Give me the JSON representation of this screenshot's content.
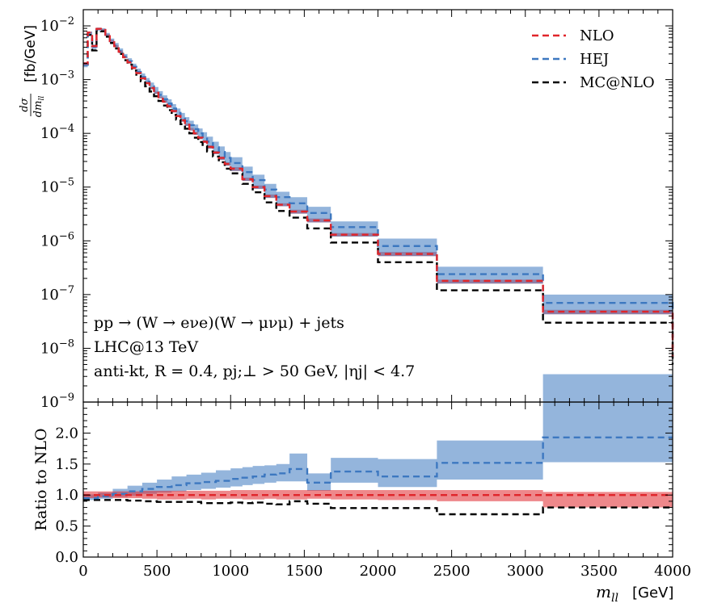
{
  "chart_data": {
    "type": "line",
    "xlabel_math": "m",
    "xlabel_sub": "ll",
    "xlabel_unit": "[GeV]",
    "xlim": [
      0,
      4000
    ],
    "x_ticks": [
      0,
      500,
      1000,
      1500,
      2000,
      2500,
      3000,
      3500,
      4000
    ],
    "x_tick_labels": [
      "0",
      "500",
      "1000",
      "1500",
      "2000",
      "2500",
      "3000",
      "3500",
      "4000"
    ],
    "top": {
      "ylabel_frac_num": "dσ",
      "ylabel_frac_den": "dm",
      "ylabel_frac_den_sub": "ll",
      "ylabel_unit": "[fb/GeV]",
      "yscale": "log",
      "ylim": [
        1e-09,
        0.02
      ],
      "y_tick_exps": [
        -9,
        -8,
        -7,
        -6,
        -5,
        -4,
        -3,
        -2
      ],
      "y_tick_base": "10",
      "edges": [
        0,
        30,
        60,
        90,
        120,
        150,
        180,
        210,
        240,
        270,
        300,
        330,
        360,
        390,
        420,
        450,
        480,
        510,
        540,
        570,
        600,
        630,
        660,
        690,
        720,
        750,
        780,
        810,
        840,
        880,
        920,
        960,
        1000,
        1080,
        1150,
        1230,
        1310,
        1400,
        1520,
        1680,
        2000,
        2400,
        3120,
        4000
      ],
      "series": [
        {
          "name": "NLO",
          "color": "#e0262b",
          "values": [
            0.002,
            0.0075,
            0.0042,
            0.0088,
            0.0084,
            0.0068,
            0.0052,
            0.0042,
            0.0033,
            0.0026,
            0.0021,
            0.00165,
            0.00132,
            0.00106,
            0.00086,
            0.0007,
            0.00057,
            0.00047,
            0.00039,
            0.00032,
            0.00026,
            0.00021,
            0.000175,
            0.000145,
            0.00012,
            0.0001,
            8.3e-05,
            7e-05,
            5.6e-05,
            4.4e-05,
            3.5e-05,
            2.7e-05,
            2.2e-05,
            1.4e-05,
            1e-05,
            6.8e-06,
            4.7e-06,
            3.5e-06,
            2.4e-06,
            1.3e-06,
            5.7e-07,
            1.8e-07,
            4.8e-08,
            7e-09
          ],
          "band_lo": [
            0.0019,
            0.0072,
            0.004,
            0.0084,
            0.008,
            0.0065,
            0.005,
            0.004,
            0.0031,
            0.0025,
            0.002,
            0.00158,
            0.00126,
            0.00101,
            0.00082,
            0.00066,
            0.00054,
            0.00045,
            0.00037,
            0.0003,
            0.000245,
            0.0002,
            0.000165,
            0.000137,
            0.000113,
            9.4e-05,
            7.8e-05,
            6.6e-05,
            5.2e-05,
            4.1e-05,
            3.2e-05,
            2.5e-05,
            2e-05,
            1.3e-05,
            9.3e-06,
            6.3e-06,
            4.4e-06,
            3.2e-06,
            2.2e-06,
            1.2e-06,
            5.2e-07,
            1.6e-07,
            4.3e-08,
            6e-09
          ],
          "band_hi": [
            0.0021,
            0.0078,
            0.0044,
            0.0092,
            0.0088,
            0.0071,
            0.0055,
            0.0044,
            0.0035,
            0.0027,
            0.0022,
            0.00173,
            0.00139,
            0.00111,
            0.0009,
            0.00073,
            0.0006,
            0.00049,
            0.00041,
            0.00034,
            0.000275,
            0.00022,
            0.000185,
            0.000153,
            0.000127,
            0.000106,
            8.8e-05,
            7.4e-05,
            6e-05,
            4.7e-05,
            3.7e-05,
            2.9e-05,
            2.35e-05,
            1.5e-05,
            1.07e-05,
            7.3e-06,
            5e-06,
            3.8e-06,
            2.6e-06,
            1.4e-06,
            6.2e-07,
            1.9e-07,
            5.2e-08,
            8e-09
          ]
        },
        {
          "name": "HEJ",
          "color": "#3d78c0",
          "values": [
            0.0019,
            0.0072,
            0.0041,
            0.0087,
            0.0084,
            0.0069,
            0.0053,
            0.0043,
            0.0034,
            0.0027,
            0.0022,
            0.00173,
            0.00139,
            0.00112,
            0.00092,
            0.00075,
            0.00062,
            0.00052,
            0.00043,
            0.00036,
            0.00029,
            0.00024,
            0.0002,
            0.000168,
            0.000142,
            0.00012,
            0.0001,
            8.5e-05,
            7e-05,
            5.5e-05,
            4.5e-05,
            3.5e-05,
            2.8e-05,
            1.9e-05,
            1.35e-05,
            9e-06,
            6.5e-06,
            5e-06,
            3.3e-06,
            1.8e-06,
            8e-07,
            2.4e-07,
            7e-08,
            1.6e-08
          ],
          "band_lo": [
            0.0017,
            0.0066,
            0.0037,
            0.0082,
            0.0079,
            0.0064,
            0.0049,
            0.004,
            0.0031,
            0.0025,
            0.002,
            0.00158,
            0.00126,
            0.00101,
            0.00082,
            0.00066,
            0.00054,
            0.00045,
            0.00037,
            0.0003,
            0.000245,
            0.0002,
            0.000165,
            0.000137,
            0.000113,
            9.4e-05,
            7.8e-05,
            6.6e-05,
            5.2e-05,
            4.1e-05,
            3.2e-05,
            2.5e-05,
            2e-05,
            1.3e-05,
            9.3e-06,
            6.3e-06,
            4.4e-06,
            3.2e-06,
            2.2e-06,
            1.2e-06,
            5.2e-07,
            1.6e-07,
            4.3e-08,
            1.2e-08
          ],
          "band_hi": [
            0.0021,
            0.0078,
            0.0045,
            0.0093,
            0.009,
            0.0074,
            0.0058,
            0.0048,
            0.0038,
            0.003,
            0.0025,
            0.00198,
            0.0016,
            0.0013,
            0.00107,
            0.00088,
            0.00073,
            0.00061,
            0.00051,
            0.00043,
            0.00035,
            0.00029,
            0.00024,
            0.0002,
            0.000172,
            0.000146,
            0.000123,
            0.000105,
            8.7e-05,
            7e-05,
            5.7e-05,
            4.5e-05,
            3.6e-05,
            2.4e-05,
            1.7e-05,
            1.15e-05,
            8.2e-06,
            6.5e-06,
            4.3e-06,
            2.3e-06,
            1.1e-06,
            3.3e-07,
            1e-07,
            2.3e-08
          ]
        },
        {
          "name": "MC@NLO",
          "color": "#000000",
          "values": [
            0.0019,
            0.0068,
            0.0035,
            0.0083,
            0.0079,
            0.0063,
            0.0048,
            0.0038,
            0.003,
            0.0023,
            0.0019,
            0.00147,
            0.00116,
            0.00093,
            0.00075,
            0.0006,
            0.00049,
            0.0004,
            0.00033,
            0.00027,
            0.00022,
            0.00018,
            0.000148,
            0.000122,
            0.0001,
            8.3e-05,
            6.9e-05,
            5.8e-05,
            4.6e-05,
            3.7e-05,
            2.9e-05,
            2.2e-05,
            1.8e-05,
            1.15e-05,
            8e-06,
            5.2e-06,
            3.6e-06,
            2.7e-06,
            1.7e-06,
            9.3e-07,
            4e-07,
            1.2e-07,
            3e-08,
            5e-09
          ]
        }
      ]
    },
    "ratio": {
      "ylabel": "Ratio to NLO",
      "ylim": [
        0.0,
        2.5
      ],
      "y_ticks": [
        0.0,
        0.5,
        1.0,
        1.5,
        2.0
      ],
      "y_tick_labels": [
        "0.0",
        "0.5",
        "1.0",
        "1.5",
        "2.0"
      ],
      "edges": [
        0,
        100,
        200,
        300,
        400,
        500,
        600,
        700,
        800,
        900,
        1000,
        1080,
        1150,
        1230,
        1310,
        1400,
        1520,
        1680,
        2000,
        2400,
        3120,
        4000
      ],
      "series": [
        {
          "name": "NLO",
          "color": "#e0262b",
          "values": [
            1.0,
            1.0,
            1.0,
            1.0,
            1.0,
            1.0,
            1.0,
            1.0,
            1.0,
            1.0,
            1.0,
            1.0,
            1.0,
            1.0,
            1.0,
            1.0,
            1.0,
            1.0,
            1.0,
            1.0,
            1.0
          ],
          "band_lo": [
            0.95,
            0.96,
            0.95,
            0.95,
            0.94,
            0.93,
            0.93,
            0.94,
            0.93,
            0.94,
            0.94,
            0.93,
            0.93,
            0.94,
            0.93,
            0.93,
            0.94,
            0.93,
            0.92,
            0.9,
            0.8
          ],
          "band_hi": [
            1.06,
            1.06,
            1.06,
            1.06,
            1.07,
            1.07,
            1.07,
            1.07,
            1.07,
            1.07,
            1.08,
            1.08,
            1.08,
            1.08,
            1.08,
            1.08,
            1.08,
            1.08,
            1.08,
            1.08,
            1.05
          ]
        },
        {
          "name": "HEJ",
          "color": "#3d78c0",
          "values": [
            0.95,
            0.98,
            1.02,
            1.06,
            1.1,
            1.13,
            1.16,
            1.19,
            1.21,
            1.23,
            1.26,
            1.28,
            1.3,
            1.33,
            1.35,
            1.42,
            1.2,
            1.38,
            1.3,
            1.52,
            1.93
          ],
          "band_lo": [
            0.92,
            0.94,
            0.97,
            0.99,
            1.02,
            1.04,
            1.06,
            1.08,
            1.1,
            1.12,
            1.14,
            1.16,
            1.18,
            1.2,
            1.22,
            1.22,
            1.07,
            1.2,
            1.13,
            1.25,
            1.53
          ],
          "band_hi": [
            1.01,
            1.04,
            1.1,
            1.15,
            1.2,
            1.25,
            1.3,
            1.33,
            1.36,
            1.4,
            1.43,
            1.45,
            1.47,
            1.48,
            1.5,
            1.67,
            1.35,
            1.6,
            1.58,
            1.88,
            2.95
          ]
        },
        {
          "name": "MC@NLO",
          "color": "#000000",
          "values": [
            0.92,
            0.92,
            0.92,
            0.91,
            0.9,
            0.89,
            0.89,
            0.89,
            0.87,
            0.87,
            0.88,
            0.87,
            0.88,
            0.86,
            0.85,
            0.9,
            0.86,
            0.79,
            0.79,
            0.69,
            0.8
          ]
        }
      ]
    },
    "annotations": {
      "process": "pp → (W → eνe)(W → μνμ) + jets",
      "collider": "LHC@13 TeV",
      "cuts": "anti-kt, R = 0.4, pj;⊥ > 50 GeV, |ηj| < 4.7"
    },
    "legend": {
      "placement": "top-right",
      "entries": [
        "NLO",
        "HEJ",
        "MC@NLO"
      ]
    }
  }
}
